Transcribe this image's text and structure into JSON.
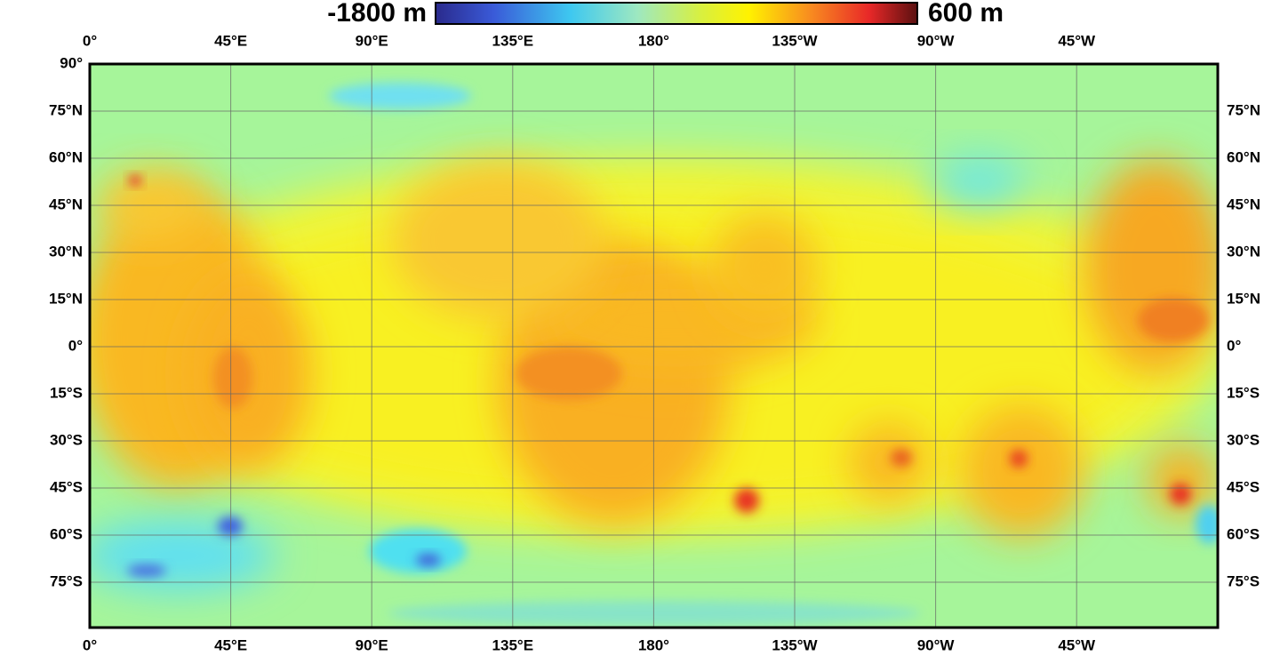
{
  "colorbar": {
    "min_label": "-1800 m",
    "max_label": "600 m"
  },
  "lon_labels": [
    "0°",
    "45°E",
    "90°E",
    "135°E",
    "180°",
    "135°W",
    "90°W",
    "45°W"
  ],
  "lat_labels": [
    "90°",
    "75°N",
    "60°N",
    "45°N",
    "30°N",
    "15°N",
    "0°",
    "15°S",
    "30°S",
    "45°S",
    "60°S",
    "75°S"
  ]
}
